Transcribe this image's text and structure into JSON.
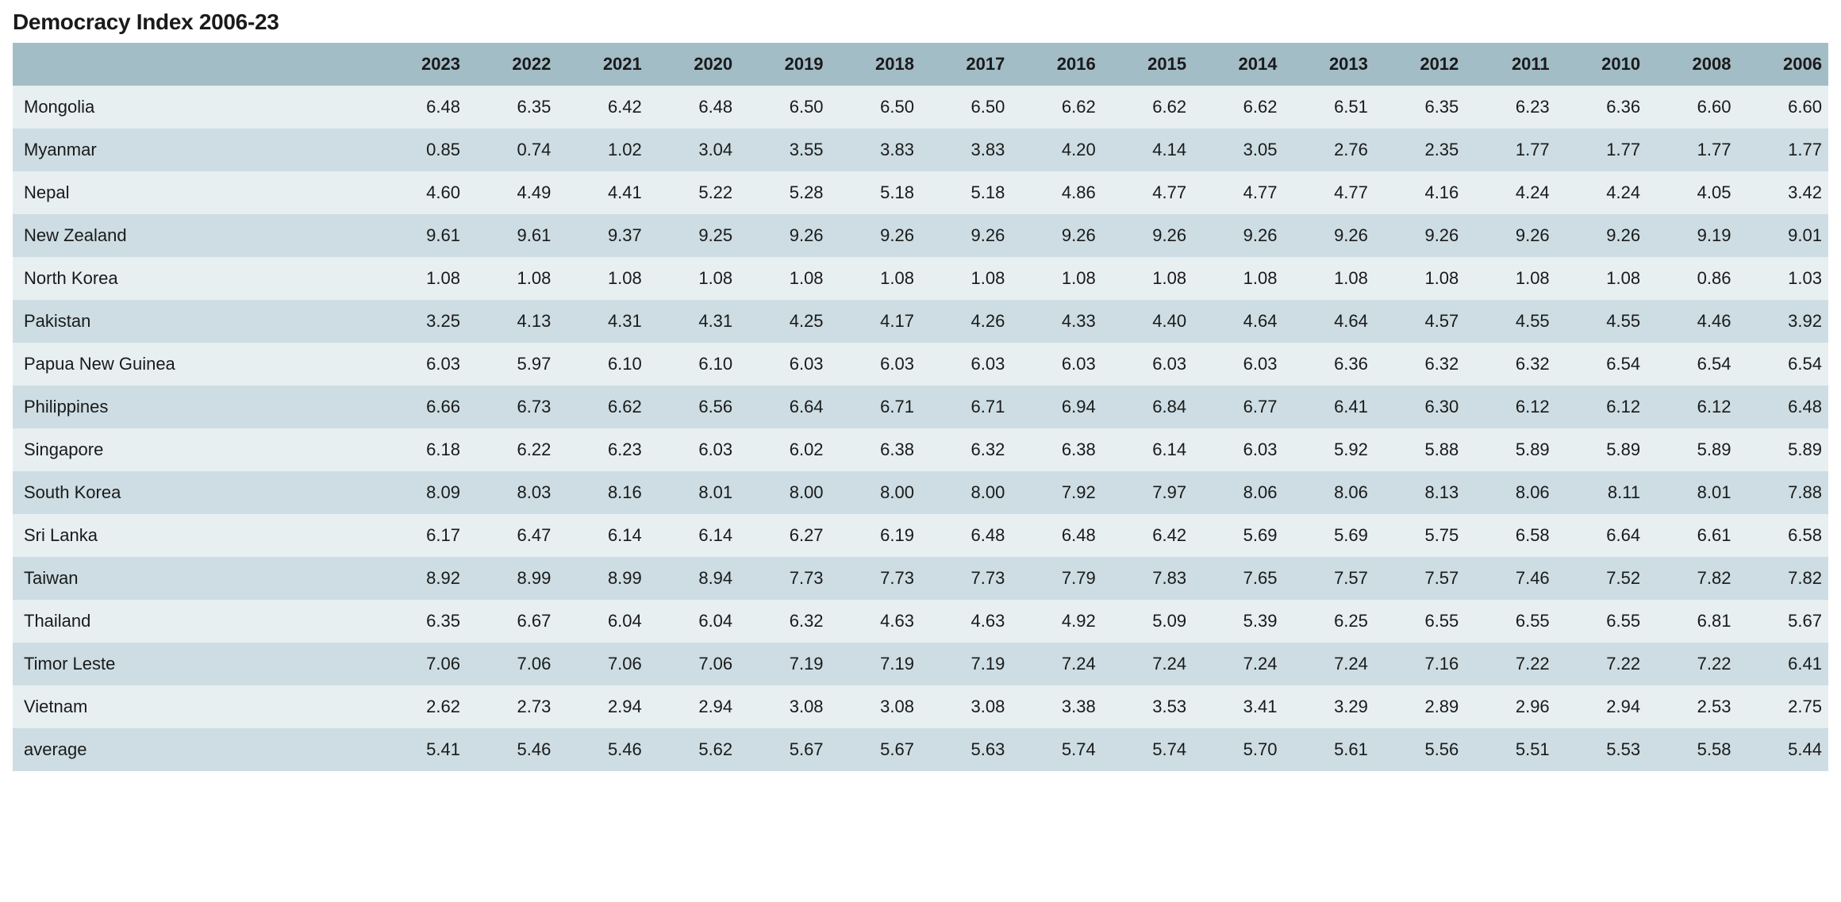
{
  "title": "Democracy Index 2006-23",
  "table": {
    "type": "table",
    "header_bg_color": "#a3bdc7",
    "row_odd_bg_color": "#e7eff1",
    "row_even_bg_color": "#cddde3",
    "text_color": "#1a1a1a",
    "font_size": 22,
    "header_font_weight": 700,
    "body_font_weight": 400,
    "first_col_width_pct": 20,
    "columns": [
      "",
      "2023",
      "2022",
      "2021",
      "2020",
      "2019",
      "2018",
      "2017",
      "2016",
      "2015",
      "2014",
      "2013",
      "2012",
      "2011",
      "2010",
      "2008",
      "2006"
    ],
    "rows": [
      [
        "Mongolia",
        "6.48",
        "6.35",
        "6.42",
        "6.48",
        "6.50",
        "6.50",
        "6.50",
        "6.62",
        "6.62",
        "6.62",
        "6.51",
        "6.35",
        "6.23",
        "6.36",
        "6.60",
        "6.60"
      ],
      [
        "Myanmar",
        "0.85",
        "0.74",
        "1.02",
        "3.04",
        "3.55",
        "3.83",
        "3.83",
        "4.20",
        "4.14",
        "3.05",
        "2.76",
        "2.35",
        "1.77",
        "1.77",
        "1.77",
        "1.77"
      ],
      [
        "Nepal",
        "4.60",
        "4.49",
        "4.41",
        "5.22",
        "5.28",
        "5.18",
        "5.18",
        "4.86",
        "4.77",
        "4.77",
        "4.77",
        "4.16",
        "4.24",
        "4.24",
        "4.05",
        "3.42"
      ],
      [
        "New Zealand",
        "9.61",
        "9.61",
        "9.37",
        "9.25",
        "9.26",
        "9.26",
        "9.26",
        "9.26",
        "9.26",
        "9.26",
        "9.26",
        "9.26",
        "9.26",
        "9.26",
        "9.19",
        "9.01"
      ],
      [
        "North Korea",
        "1.08",
        "1.08",
        "1.08",
        "1.08",
        "1.08",
        "1.08",
        "1.08",
        "1.08",
        "1.08",
        "1.08",
        "1.08",
        "1.08",
        "1.08",
        "1.08",
        "0.86",
        "1.03"
      ],
      [
        "Pakistan",
        "3.25",
        "4.13",
        "4.31",
        "4.31",
        "4.25",
        "4.17",
        "4.26",
        "4.33",
        "4.40",
        "4.64",
        "4.64",
        "4.57",
        "4.55",
        "4.55",
        "4.46",
        "3.92"
      ],
      [
        "Papua New Guinea",
        "6.03",
        "5.97",
        "6.10",
        "6.10",
        "6.03",
        "6.03",
        "6.03",
        "6.03",
        "6.03",
        "6.03",
        "6.36",
        "6.32",
        "6.32",
        "6.54",
        "6.54",
        "6.54"
      ],
      [
        "Philippines",
        "6.66",
        "6.73",
        "6.62",
        "6.56",
        "6.64",
        "6.71",
        "6.71",
        "6.94",
        "6.84",
        "6.77",
        "6.41",
        "6.30",
        "6.12",
        "6.12",
        "6.12",
        "6.48"
      ],
      [
        "Singapore",
        "6.18",
        "6.22",
        "6.23",
        "6.03",
        "6.02",
        "6.38",
        "6.32",
        "6.38",
        "6.14",
        "6.03",
        "5.92",
        "5.88",
        "5.89",
        "5.89",
        "5.89",
        "5.89"
      ],
      [
        "South Korea",
        "8.09",
        "8.03",
        "8.16",
        "8.01",
        "8.00",
        "8.00",
        "8.00",
        "7.92",
        "7.97",
        "8.06",
        "8.06",
        "8.13",
        "8.06",
        "8.11",
        "8.01",
        "7.88"
      ],
      [
        "Sri Lanka",
        "6.17",
        "6.47",
        "6.14",
        "6.14",
        "6.27",
        "6.19",
        "6.48",
        "6.48",
        "6.42",
        "5.69",
        "5.69",
        "5.75",
        "6.58",
        "6.64",
        "6.61",
        "6.58"
      ],
      [
        "Taiwan",
        "8.92",
        "8.99",
        "8.99",
        "8.94",
        "7.73",
        "7.73",
        "7.73",
        "7.79",
        "7.83",
        "7.65",
        "7.57",
        "7.57",
        "7.46",
        "7.52",
        "7.82",
        "7.82"
      ],
      [
        "Thailand",
        "6.35",
        "6.67",
        "6.04",
        "6.04",
        "6.32",
        "4.63",
        "4.63",
        "4.92",
        "5.09",
        "5.39",
        "6.25",
        "6.55",
        "6.55",
        "6.55",
        "6.81",
        "5.67"
      ],
      [
        "Timor Leste",
        "7.06",
        "7.06",
        "7.06",
        "7.06",
        "7.19",
        "7.19",
        "7.19",
        "7.24",
        "7.24",
        "7.24",
        "7.24",
        "7.16",
        "7.22",
        "7.22",
        "7.22",
        "6.41"
      ],
      [
        "Vietnam",
        "2.62",
        "2.73",
        "2.94",
        "2.94",
        "3.08",
        "3.08",
        "3.08",
        "3.38",
        "3.53",
        "3.41",
        "3.29",
        "2.89",
        "2.96",
        "2.94",
        "2.53",
        "2.75"
      ],
      [
        "average",
        "5.41",
        "5.46",
        "5.46",
        "5.62",
        "5.67",
        "5.67",
        "5.63",
        "5.74",
        "5.74",
        "5.70",
        "5.61",
        "5.56",
        "5.51",
        "5.53",
        "5.58",
        "5.44"
      ]
    ]
  }
}
